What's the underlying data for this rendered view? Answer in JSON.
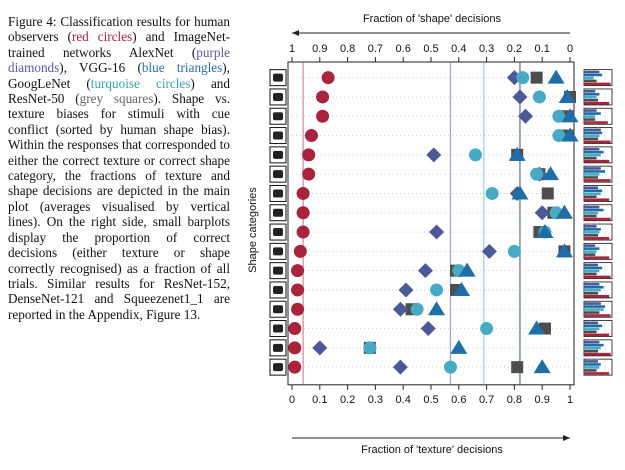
{
  "caption": {
    "p1": "Figure 4: Classification results for human observers (",
    "human": "red circles",
    "p2": ") and ImageNet-trained networks AlexNet (",
    "alexnet": "purple diamonds",
    "p3": "), VGG-16 (",
    "vgg": "blue triangles",
    "p4": "), GoogLeNet (",
    "googlenet": "turquoise circles",
    "p5": ") and ResNet-50 (",
    "resnet": "grey squares",
    "p6": "). Shape vs. texture biases for stimuli with cue conflict (sorted by human shape bias). Within the responses that corresponded to either the correct texture or correct shape category, the fractions of texture and shape decisions are depicted in the main plot (averages visualised by vertical lines). On the right side, small barplots display the proportion of correct decisions (either texture or shape correctly recognised) as a fraction of all trials. Similar results for ResNet-152, DenseNet-121 and Squeezenet1_1 are reported in the Appendix, Figure 13."
  },
  "colors": {
    "human": "#a8233b",
    "alexnet": "#4b5a96",
    "vgg": "#1f6ea8",
    "googlenet": "#47a9c4",
    "resnet": "#4d4d4d"
  },
  "chart_data": {
    "type": "scatter",
    "title": "",
    "xlabel_top": "Fraction of 'shape' decisions",
    "xlabel_bottom": "Fraction of 'texture' decisions",
    "ylabel": "Shape categories",
    "xlim": [
      0,
      1
    ],
    "top_ticks": [
      "1",
      "0.9",
      "0.8",
      "0.7",
      "0.6",
      "0.5",
      "0.4",
      "0.3",
      "0.2",
      "0.1",
      "0"
    ],
    "bottom_ticks": [
      "0",
      "0.1",
      "0.2",
      "0.3",
      "0.4",
      "0.5",
      "0.6",
      "0.7",
      "0.8",
      "0.9",
      "1"
    ],
    "categories": [
      "knife",
      "bottle",
      "airplane",
      "elephant",
      "dog",
      "oven",
      "bird",
      "bear",
      "cat",
      "chair",
      "boat",
      "car",
      "bicycle",
      "keyboard",
      "truck",
      "clock"
    ],
    "category_icons": [
      "knife-icon",
      "bottle-icon",
      "airplane-icon",
      "elephant-icon",
      "dog-icon",
      "oven-icon",
      "bird-icon",
      "bear-icon",
      "cat-icon",
      "chair-icon",
      "boat-icon",
      "car-icon",
      "bicycle-icon",
      "keyboard-icon",
      "truck-icon",
      "clock-icon"
    ],
    "series": [
      {
        "name": "Human",
        "key": "human",
        "shape": "circle",
        "texture_fraction": [
          0.13,
          0.11,
          0.11,
          0.07,
          0.06,
          0.06,
          0.04,
          0.04,
          0.04,
          0.03,
          0.02,
          0.02,
          0.02,
          0.01,
          0.01,
          0.01
        ],
        "mean": 0.04
      },
      {
        "name": "AlexNet",
        "key": "alexnet",
        "shape": "diamond",
        "texture_fraction": [
          0.8,
          0.82,
          0.84,
          null,
          0.51,
          0.89,
          0.81,
          0.9,
          0.52,
          0.71,
          0.48,
          0.41,
          0.39,
          0.49,
          0.1,
          0.39
        ],
        "mean": 0.57
      },
      {
        "name": "VGG-16",
        "key": "vgg",
        "shape": "triangle",
        "texture_fraction": [
          0.95,
          0.99,
          1.0,
          1.0,
          0.81,
          0.93,
          0.82,
          0.98,
          0.91,
          0.98,
          0.63,
          0.61,
          0.52,
          0.88,
          0.6,
          0.9
        ],
        "mean": 0.82
      },
      {
        "name": "GoogLeNet",
        "key": "googlenet",
        "shape": "circle",
        "texture_fraction": [
          0.83,
          0.89,
          0.96,
          0.96,
          0.66,
          0.88,
          0.72,
          0.95,
          0.91,
          0.8,
          0.6,
          0.52,
          0.45,
          0.7,
          0.28,
          0.57
        ],
        "mean": 0.69
      },
      {
        "name": "ResNet-50",
        "key": "resnet",
        "shape": "square",
        "texture_fraction": [
          0.88,
          1.0,
          0.99,
          0.99,
          0.81,
          0.89,
          0.92,
          0.94,
          0.89,
          0.98,
          0.59,
          0.59,
          0.43,
          0.91,
          0.28,
          0.81
        ],
        "mean": 0.82
      }
    ],
    "barplot_correct_fraction": [
      [
        0.55,
        0.65,
        0.35,
        0.45,
        0.95
      ],
      [
        0.4,
        0.55,
        0.45,
        0.5,
        0.9
      ],
      [
        0.45,
        0.6,
        0.4,
        0.4,
        0.85
      ],
      [
        0.6,
        0.65,
        0.55,
        0.5,
        0.95
      ],
      [
        0.55,
        0.7,
        0.6,
        0.45,
        0.9
      ],
      [
        0.6,
        0.75,
        0.55,
        0.5,
        0.95
      ],
      [
        0.5,
        0.65,
        0.6,
        0.45,
        0.9
      ],
      [
        0.55,
        0.7,
        0.5,
        0.45,
        0.95
      ],
      [
        0.45,
        0.6,
        0.55,
        0.5,
        0.9
      ],
      [
        0.4,
        0.55,
        0.45,
        0.4,
        0.9
      ],
      [
        0.5,
        0.65,
        0.55,
        0.45,
        0.95
      ],
      [
        0.55,
        0.7,
        0.6,
        0.5,
        0.9
      ],
      [
        0.6,
        0.75,
        0.7,
        0.55,
        0.95
      ],
      [
        0.5,
        0.65,
        0.55,
        0.45,
        0.9
      ],
      [
        0.55,
        0.7,
        0.6,
        0.5,
        0.95
      ],
      [
        0.5,
        0.6,
        0.55,
        0.45,
        0.9
      ]
    ],
    "barplot_order": [
      "alexnet",
      "vgg",
      "googlenet",
      "resnet",
      "human"
    ]
  }
}
